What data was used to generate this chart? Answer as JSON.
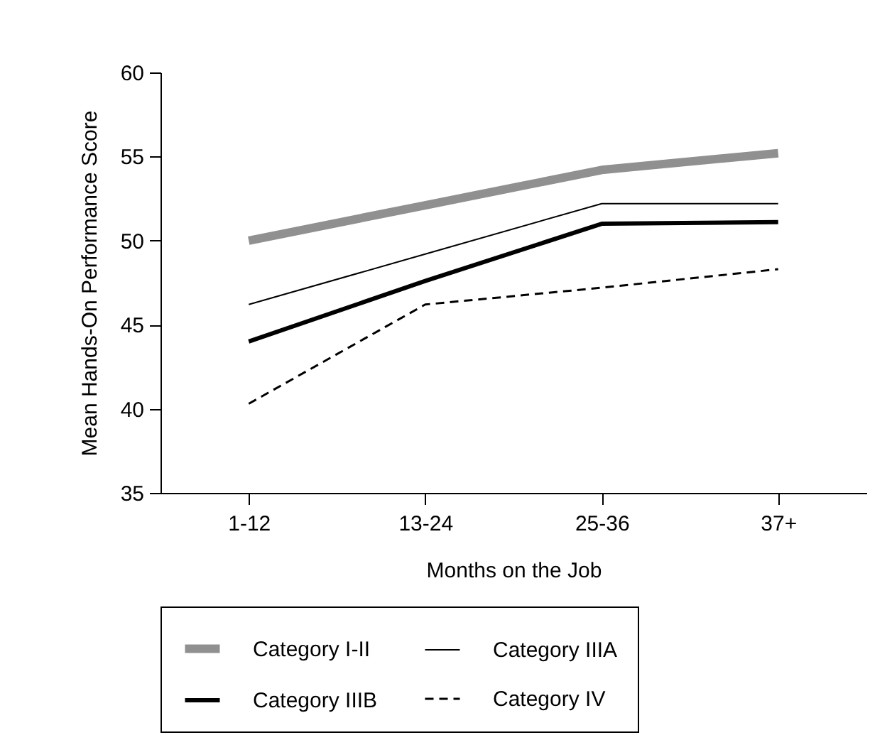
{
  "chart_data": {
    "type": "line",
    "xlabel": "Months on the Job",
    "ylabel": "Mean Hands-On Performance Score",
    "categories": [
      "1-12",
      "13-24",
      "25-36",
      "37+"
    ],
    "series": [
      {
        "name": "Category I-II",
        "color": "#909090",
        "line_style": "solid",
        "values": [
          50.0,
          52.1,
          54.2,
          55.2
        ]
      },
      {
        "name": "Category IIIA",
        "color": "#000000",
        "line_style": "solid",
        "values": [
          46.2,
          49.2,
          52.2,
          52.2
        ]
      },
      {
        "name": "Category IIIB",
        "color": "#000000",
        "line_style": "solid",
        "values": [
          44.0,
          47.6,
          51.0,
          51.1
        ]
      },
      {
        "name": "Category IV",
        "color": "#000000",
        "line_style": "dashed",
        "values": [
          40.3,
          46.2,
          47.2,
          48.3
        ]
      }
    ],
    "ylim": [
      35,
      60
    ],
    "yticks": [
      35,
      40,
      45,
      50,
      55,
      60
    ],
    "grid": false,
    "legend": "bottom",
    "marker": "none"
  }
}
